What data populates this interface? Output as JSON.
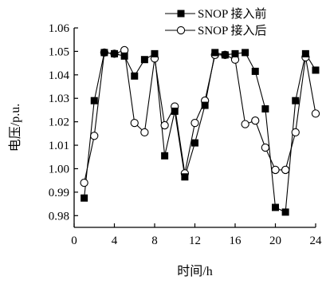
{
  "chart_data": {
    "type": "line",
    "title": "",
    "xlabel": "时间/h",
    "ylabel": "电压/p.u.",
    "xlim": [
      0,
      24
    ],
    "ylim": [
      0.975,
      1.06
    ],
    "xticks": [
      0,
      4,
      8,
      12,
      16,
      20,
      24
    ],
    "yticks": [
      0.98,
      0.99,
      1.0,
      1.01,
      1.02,
      1.03,
      1.04,
      1.05,
      1.06
    ],
    "ytick_labels": [
      "0.98",
      "0.99",
      "1.00",
      "1.01",
      "1.02",
      "1.03",
      "1.04",
      "1.05",
      "1.06"
    ],
    "grid": false,
    "legend_position": "top-right",
    "x": [
      1,
      2,
      3,
      4,
      5,
      6,
      7,
      8,
      9,
      10,
      11,
      12,
      13,
      14,
      15,
      16,
      17,
      18,
      19,
      20,
      21,
      22,
      23,
      24
    ],
    "series": [
      {
        "name": "SNOP 接入前",
        "marker": "filled-square",
        "color": "#000000",
        "values": [
          0.9875,
          1.029,
          1.0495,
          1.049,
          1.048,
          1.0395,
          1.0465,
          1.049,
          1.0055,
          1.0245,
          0.9965,
          1.011,
          1.027,
          1.0495,
          1.0485,
          1.049,
          1.0495,
          1.0415,
          1.0255,
          0.9835,
          0.9815,
          1.029,
          1.049,
          1.042
        ]
      },
      {
        "name": "SNOP 接入后",
        "marker": "open-circle",
        "color": "#000000",
        "values": [
          0.994,
          1.014,
          1.0495,
          1.049,
          1.0505,
          1.0195,
          1.0155,
          1.047,
          1.0185,
          1.0265,
          0.998,
          1.0195,
          1.029,
          1.0485,
          1.0485,
          1.0465,
          1.019,
          1.0205,
          1.009,
          0.9995,
          0.9995,
          1.0155,
          1.0475,
          1.0235
        ]
      }
    ]
  }
}
